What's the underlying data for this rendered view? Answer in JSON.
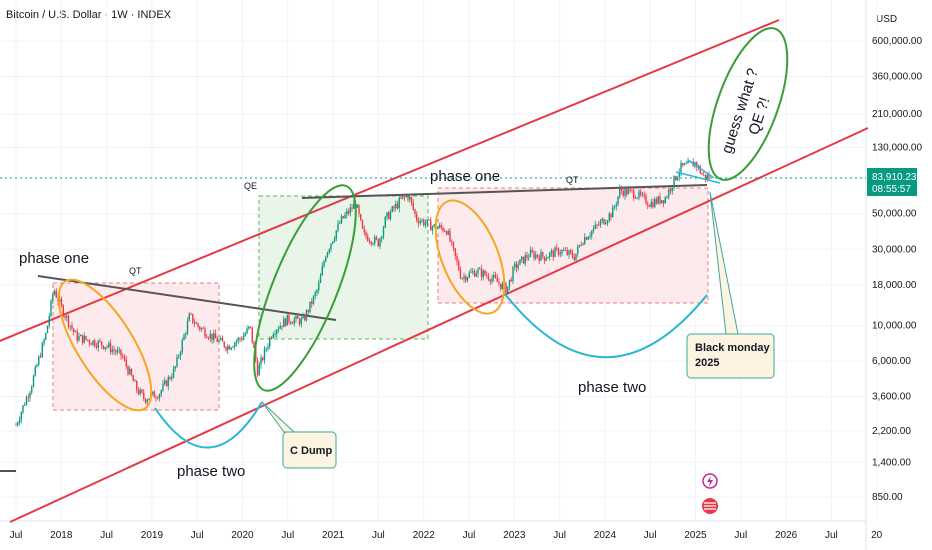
{
  "header": {
    "title": "Bitcoin / U.S. Dollar · 1W · INDEX",
    "currency": "USD"
  },
  "price_label": {
    "value": "83,910.23",
    "countdown": "08:55:57",
    "color": "#089981"
  },
  "annotations": {
    "phase_one_left": "phase one",
    "phase_two_left": "phase two",
    "phase_one_right": "phase one",
    "phase_two_right": "phase two",
    "qt_left": "QT",
    "qe_mid": "QE",
    "qt_right": "QT",
    "c_dump": "C Dump",
    "black_monday_line1": "Black monday",
    "black_monday_line2": "2025",
    "guess_line1": "guess what ?",
    "guess_line2": "QE ?!"
  },
  "colors": {
    "channel": "#e53946",
    "ellipse_orange": "#f5a623",
    "ellipse_green": "#3a9d3a",
    "arc_cyan": "#25b7d3",
    "trend_gray": "#555555",
    "candle_up": "#089981",
    "candle_down": "#f23645",
    "box_red_fill": "#fde8ea",
    "box_green_fill": "#e6f5e6"
  },
  "chart_data": {
    "type": "candlestick",
    "title": "Bitcoin / U.S. Dollar · 1W · INDEX",
    "y_unit": "USD",
    "y_scale": "log",
    "y_ticks": [
      "600,000.00",
      "360,000.00",
      "210,000.00",
      "130,000.00",
      "83,910.23",
      "50,000.00",
      "30,000.00",
      "18,000.00",
      "10,000.00",
      "6,000.00",
      "3,600.00",
      "2,200.00",
      "1,400.00",
      "850.00"
    ],
    "y_tick_values": [
      600000,
      360000,
      210000,
      130000,
      83910.23,
      50000,
      30000,
      18000,
      10000,
      6000,
      3600,
      2200,
      1400,
      850
    ],
    "x_ticks": [
      "Jul",
      "2018",
      "Jul",
      "2019",
      "Jul",
      "2020",
      "Jul",
      "2021",
      "Jul",
      "2022",
      "Jul",
      "2023",
      "Jul",
      "2024",
      "Jul",
      "2025",
      "Jul",
      "2026",
      "Jul",
      "20"
    ],
    "last_price": 83910.23,
    "series": [
      {
        "name": "BTCUSD",
        "points": [
          [
            "2017-07",
            2400
          ],
          [
            "2017-09",
            4200
          ],
          [
            "2017-11",
            9000
          ],
          [
            "2017-12",
            17000
          ],
          [
            "2018-01",
            13000
          ],
          [
            "2018-03",
            8500
          ],
          [
            "2018-05",
            8000
          ],
          [
            "2018-07",
            7500
          ],
          [
            "2018-09",
            6500
          ],
          [
            "2018-11",
            4000
          ],
          [
            "2018-12",
            3500
          ],
          [
            "2019-02",
            3800
          ],
          [
            "2019-04",
            5300
          ],
          [
            "2019-06",
            11500
          ],
          [
            "2019-07",
            10000
          ],
          [
            "2019-09",
            8500
          ],
          [
            "2019-11",
            7400
          ],
          [
            "2020-01",
            8500
          ],
          [
            "2020-02",
            9800
          ],
          [
            "2020-03",
            5200
          ],
          [
            "2020-05",
            9300
          ],
          [
            "2020-07",
            11000
          ],
          [
            "2020-09",
            10700
          ],
          [
            "2020-11",
            17000
          ],
          [
            "2020-12",
            28000
          ],
          [
            "2021-02",
            45000
          ],
          [
            "2021-04",
            58000
          ],
          [
            "2021-05",
            37000
          ],
          [
            "2021-07",
            33000
          ],
          [
            "2021-08",
            47000
          ],
          [
            "2021-10",
            61000
          ],
          [
            "2021-11",
            65000
          ],
          [
            "2021-12",
            47000
          ],
          [
            "2022-02",
            42000
          ],
          [
            "2022-04",
            40000
          ],
          [
            "2022-06",
            20000
          ],
          [
            "2022-08",
            22000
          ],
          [
            "2022-10",
            20000
          ],
          [
            "2022-12",
            16800
          ],
          [
            "2023-01",
            23000
          ],
          [
            "2023-03",
            28000
          ],
          [
            "2023-05",
            27000
          ],
          [
            "2023-07",
            29500
          ],
          [
            "2023-09",
            27000
          ],
          [
            "2023-10",
            34500
          ],
          [
            "2023-12",
            42000
          ],
          [
            "2024-02",
            51000
          ],
          [
            "2024-03",
            70000
          ],
          [
            "2024-05",
            67000
          ],
          [
            "2024-07",
            58000
          ],
          [
            "2024-09",
            63000
          ],
          [
            "2024-11",
            97000
          ],
          [
            "2024-12",
            100000
          ],
          [
            "2025-01",
            104000
          ],
          [
            "2025-02",
            86000
          ],
          [
            "2025-03",
            84000
          ]
        ]
      }
    ]
  }
}
